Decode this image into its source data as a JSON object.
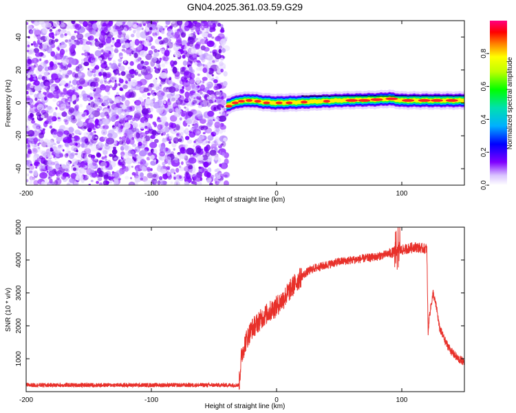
{
  "title": "GN04.2025.361.03.59.G29",
  "colors": {
    "scatter": "#7f00ff",
    "snr_line": "#e8302a",
    "axis": "#000000",
    "background": "#ffffff"
  },
  "colorbar": {
    "label": "Normalized spectral amplitude",
    "ticks": [
      "0.0",
      "0.2",
      "0.4",
      "0.6",
      "0.8"
    ],
    "tick_values": [
      0.0,
      0.2,
      0.4,
      0.6,
      0.8
    ],
    "range": [
      0,
      1
    ]
  },
  "chart_data": [
    {
      "type": "heatmap",
      "name": "spectrogram",
      "xlabel": "Height of straight line (km)",
      "ylabel": "Frequency (Hz)",
      "xlim": [
        -200,
        150
      ],
      "ylim": [
        -50,
        50
      ],
      "xticks": [
        "-200",
        "-100",
        "0",
        "100"
      ],
      "xtick_values": [
        -200,
        -100,
        0,
        100
      ],
      "yticks": [
        "40",
        "20",
        "0",
        "-20",
        "-40"
      ],
      "ytick_values": [
        40,
        20,
        0,
        -20,
        -40
      ],
      "noise_region_km": [
        -200,
        -40
      ],
      "signal_band": {
        "x_start": -40,
        "x_end": 150,
        "center_freq_track": [
          [
            -40,
            -1.5
          ],
          [
            -30,
            1
          ],
          [
            -20,
            1.5
          ],
          [
            -10,
            0.5
          ],
          [
            0,
            0
          ],
          [
            20,
            0.5
          ],
          [
            50,
            1.5
          ],
          [
            80,
            2
          ],
          [
            90,
            2.5
          ],
          [
            100,
            1.5
          ],
          [
            120,
            1.5
          ],
          [
            150,
            1.5
          ]
        ]
      }
    },
    {
      "type": "line",
      "name": "snr",
      "xlabel": "Height of straight line (km)",
      "ylabel": "SNR (10 * v/v)",
      "xlim": [
        -200,
        150
      ],
      "ylim": [
        0,
        5000
      ],
      "xticks": [
        "-200",
        "-100",
        "0",
        "100"
      ],
      "xtick_values": [
        -200,
        -100,
        0,
        100
      ],
      "yticks": [
        "1000",
        "2000",
        "3000",
        "4000",
        "5000"
      ],
      "ytick_values": [
        1000,
        2000,
        3000,
        4000,
        5000
      ],
      "envelope": {
        "x": [
          -200,
          -30,
          -28,
          -25,
          -20,
          -15,
          -10,
          -5,
          0,
          5,
          10,
          15,
          20,
          25,
          30,
          40,
          50,
          60,
          70,
          80,
          90,
          95,
          97,
          100,
          110,
          118,
          120,
          121,
          122,
          125,
          128,
          130,
          135,
          140,
          145,
          150
        ],
        "y": [
          200,
          200,
          1100,
          1500,
          1900,
          2100,
          2300,
          2450,
          2600,
          2800,
          3050,
          3300,
          3500,
          3650,
          3750,
          3850,
          3950,
          4000,
          4050,
          4100,
          4200,
          4250,
          4300,
          4300,
          4400,
          4350,
          4350,
          1800,
          2300,
          3000,
          2500,
          1950,
          1500,
          1200,
          1000,
          900
        ]
      }
    }
  ]
}
